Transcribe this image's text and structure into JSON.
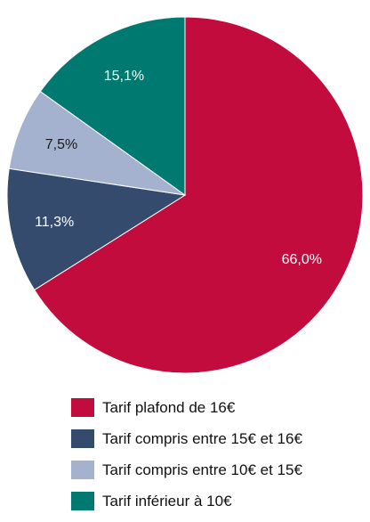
{
  "chart_data": {
    "type": "pie",
    "title": "",
    "slices": [
      {
        "label": "Tarif plafond de 16€",
        "value": 66.0,
        "display": "66,0%",
        "color": "#C30C3E",
        "text_color": "#FFFFFF"
      },
      {
        "label": "Tarif compris entre 15€ et 16€",
        "value": 11.3,
        "display": "11,3%",
        "color": "#354B6D",
        "text_color": "#FFFFFF"
      },
      {
        "label": "Tarif compris entre 10€ et 15€",
        "value": 7.5,
        "display": "7,5%",
        "color": "#A4B2CF",
        "text_color": "#1A1A1A"
      },
      {
        "label": "Tarif inférieur à 10€",
        "value": 15.1,
        "display": "15,1%",
        "color": "#007A70",
        "text_color": "#FFFFFF"
      }
    ],
    "start_angle": "top (12 o'clock)",
    "direction": "clockwise",
    "legend_position": "bottom"
  }
}
